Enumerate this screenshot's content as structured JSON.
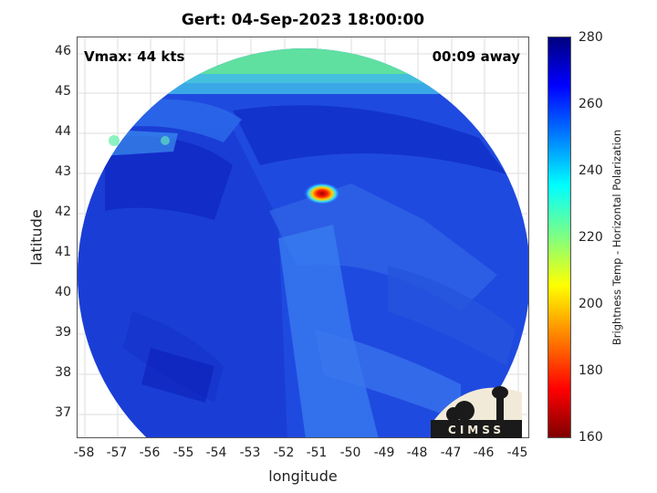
{
  "title": "Gert: 04-Sep-2023 18:00:00",
  "vmax_label": "Vmax: 44 kts",
  "time_away": "00:09 away",
  "x_axis": {
    "label": "longitude",
    "ticks": [
      "-58",
      "-57",
      "-56",
      "-55",
      "-54",
      "-53",
      "-52",
      "-51",
      "-50",
      "-49",
      "-48",
      "-47",
      "-46",
      "-45"
    ]
  },
  "y_axis": {
    "label": "latitude",
    "ticks": [
      "37",
      "38",
      "39",
      "40",
      "41",
      "42",
      "43",
      "44",
      "45",
      "46"
    ]
  },
  "colorbar": {
    "label": "Brightness Temp - Horizontal Polarization",
    "ticks": [
      "280",
      "260",
      "240",
      "220",
      "200",
      "180",
      "160"
    ],
    "colormap": "jet"
  },
  "logo_text": "CIMSS"
}
